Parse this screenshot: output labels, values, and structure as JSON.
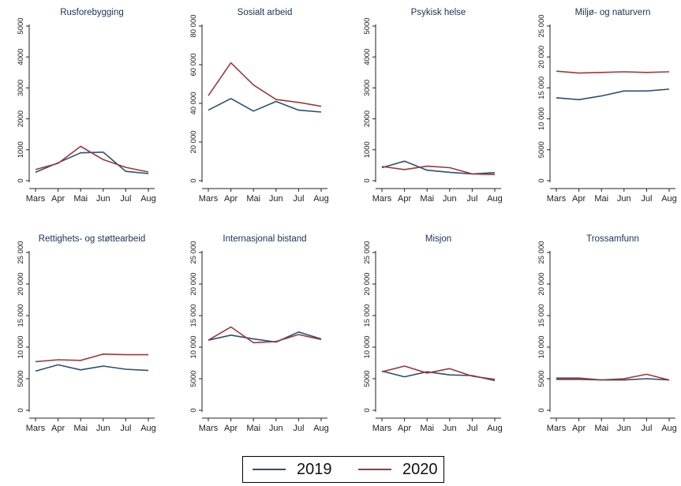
{
  "colors": {
    "series_2019": "#2e4e6f",
    "series_2020": "#963a3c",
    "axis": "#222222",
    "title": "#1a3152"
  },
  "legend": {
    "items": [
      {
        "label": "2019"
      },
      {
        "label": "2020"
      }
    ]
  },
  "chart_data": [
    {
      "type": "line",
      "title": "Rusforebygging",
      "categories": [
        "Mars",
        "Apr",
        "Mai",
        "Jun",
        "Jul",
        "Aug"
      ],
      "ylim": [
        0,
        5000
      ],
      "yticks": [
        0,
        1000,
        2000,
        3000,
        4000,
        5000
      ],
      "ytick_labels": [
        "0",
        "1000",
        "2000",
        "3000",
        "4000",
        "5000"
      ],
      "series": [
        {
          "name": "2019",
          "values": [
            270,
            580,
            900,
            920,
            300,
            230
          ]
        },
        {
          "name": "2020",
          "values": [
            360,
            560,
            1110,
            680,
            430,
            280
          ]
        }
      ]
    },
    {
      "type": "line",
      "title": "Sosialt arbeid",
      "categories": [
        "Mars",
        "Apr",
        "Mai",
        "Jun",
        "Jul",
        "Aug"
      ],
      "ylim": [
        0,
        80000
      ],
      "yticks": [
        0,
        20000,
        40000,
        60000,
        80000
      ],
      "ytick_labels": [
        "0",
        "20 000",
        "40 000",
        "60 000",
        "80 000"
      ],
      "series": [
        {
          "name": "2019",
          "values": [
            36500,
            42500,
            36000,
            41000,
            36500,
            35500
          ]
        },
        {
          "name": "2020",
          "values": [
            44000,
            61000,
            49500,
            42000,
            40500,
            38500
          ]
        }
      ]
    },
    {
      "type": "line",
      "title": "Psykisk helse",
      "categories": [
        "Mars",
        "Apr",
        "Mai",
        "Jun",
        "Jul",
        "Aug"
      ],
      "ylim": [
        0,
        5000
      ],
      "yticks": [
        0,
        1000,
        2000,
        3000,
        4000,
        5000
      ],
      "ytick_labels": [
        "0",
        "1000",
        "2000",
        "3000",
        "4000",
        "5000"
      ],
      "series": [
        {
          "name": "2019",
          "values": [
            420,
            630,
            340,
            270,
            220,
            260
          ]
        },
        {
          "name": "2020",
          "values": [
            460,
            360,
            470,
            420,
            220,
            200
          ]
        }
      ]
    },
    {
      "type": "line",
      "title": "Miljø- og naturvern",
      "categories": [
        "Mars",
        "Apr",
        "Mai",
        "Jun",
        "Jul",
        "Aug"
      ],
      "ylim": [
        0,
        25000
      ],
      "yticks": [
        0,
        5000,
        10000,
        15000,
        20000,
        25000
      ],
      "ytick_labels": [
        "0",
        "5000",
        "10 000",
        "15 000",
        "20 000",
        "25 000"
      ],
      "series": [
        {
          "name": "2019",
          "values": [
            13400,
            13100,
            13700,
            14500,
            14500,
            14800
          ]
        },
        {
          "name": "2020",
          "values": [
            17700,
            17400,
            17500,
            17600,
            17500,
            17600
          ]
        }
      ]
    },
    {
      "type": "line",
      "title": "Rettighets- og støttearbeid",
      "categories": [
        "Mars",
        "Apr",
        "Mai",
        "Jun",
        "Jul",
        "Aug"
      ],
      "ylim": [
        0,
        25000
      ],
      "yticks": [
        0,
        5000,
        10000,
        15000,
        20000,
        25000
      ],
      "ytick_labels": [
        "0",
        "5000",
        "10 000",
        "15 000",
        "20 000",
        "25 000"
      ],
      "series": [
        {
          "name": "2019",
          "values": [
            6200,
            7200,
            6400,
            7000,
            6500,
            6300
          ]
        },
        {
          "name": "2020",
          "values": [
            7700,
            8000,
            7900,
            8900,
            8800,
            8800
          ]
        }
      ]
    },
    {
      "type": "line",
      "title": "Internasjonal bistand",
      "categories": [
        "Mars",
        "Apr",
        "Mai",
        "Jun",
        "Jul",
        "Aug"
      ],
      "ylim": [
        0,
        25000
      ],
      "yticks": [
        0,
        5000,
        10000,
        15000,
        20000,
        25000
      ],
      "ytick_labels": [
        "0",
        "5000",
        "10 000",
        "15 000",
        "20 000",
        "25 000"
      ],
      "series": [
        {
          "name": "2019",
          "values": [
            11100,
            11900,
            11300,
            10800,
            12400,
            11300
          ]
        },
        {
          "name": "2020",
          "values": [
            11100,
            13200,
            10700,
            10900,
            12000,
            11200
          ]
        }
      ]
    },
    {
      "type": "line",
      "title": "Misjon",
      "categories": [
        "Mars",
        "Apr",
        "Mai",
        "Jun",
        "Jul",
        "Aug"
      ],
      "ylim": [
        0,
        25000
      ],
      "yticks": [
        0,
        5000,
        10000,
        15000,
        20000,
        25000
      ],
      "ytick_labels": [
        "0",
        "5000",
        "10 000",
        "15 000",
        "20 000",
        "25 000"
      ],
      "series": [
        {
          "name": "2019",
          "values": [
            6200,
            5300,
            6100,
            5600,
            5500,
            4700
          ]
        },
        {
          "name": "2020",
          "values": [
            6100,
            7000,
            5900,
            6600,
            5400,
            4900
          ]
        }
      ]
    },
    {
      "type": "line",
      "title": "Trossamfunn",
      "categories": [
        "Mars",
        "Apr",
        "Mai",
        "Jun",
        "Jul",
        "Aug"
      ],
      "ylim": [
        0,
        25000
      ],
      "yticks": [
        0,
        5000,
        10000,
        15000,
        20000,
        25000
      ],
      "ytick_labels": [
        "0",
        "5000",
        "10 000",
        "15 000",
        "20 000",
        "25 000"
      ],
      "series": [
        {
          "name": "2019",
          "values": [
            4900,
            4900,
            4800,
            4800,
            5000,
            4800
          ]
        },
        {
          "name": "2020",
          "values": [
            5100,
            5100,
            4800,
            5000,
            5700,
            4800
          ]
        }
      ]
    }
  ]
}
